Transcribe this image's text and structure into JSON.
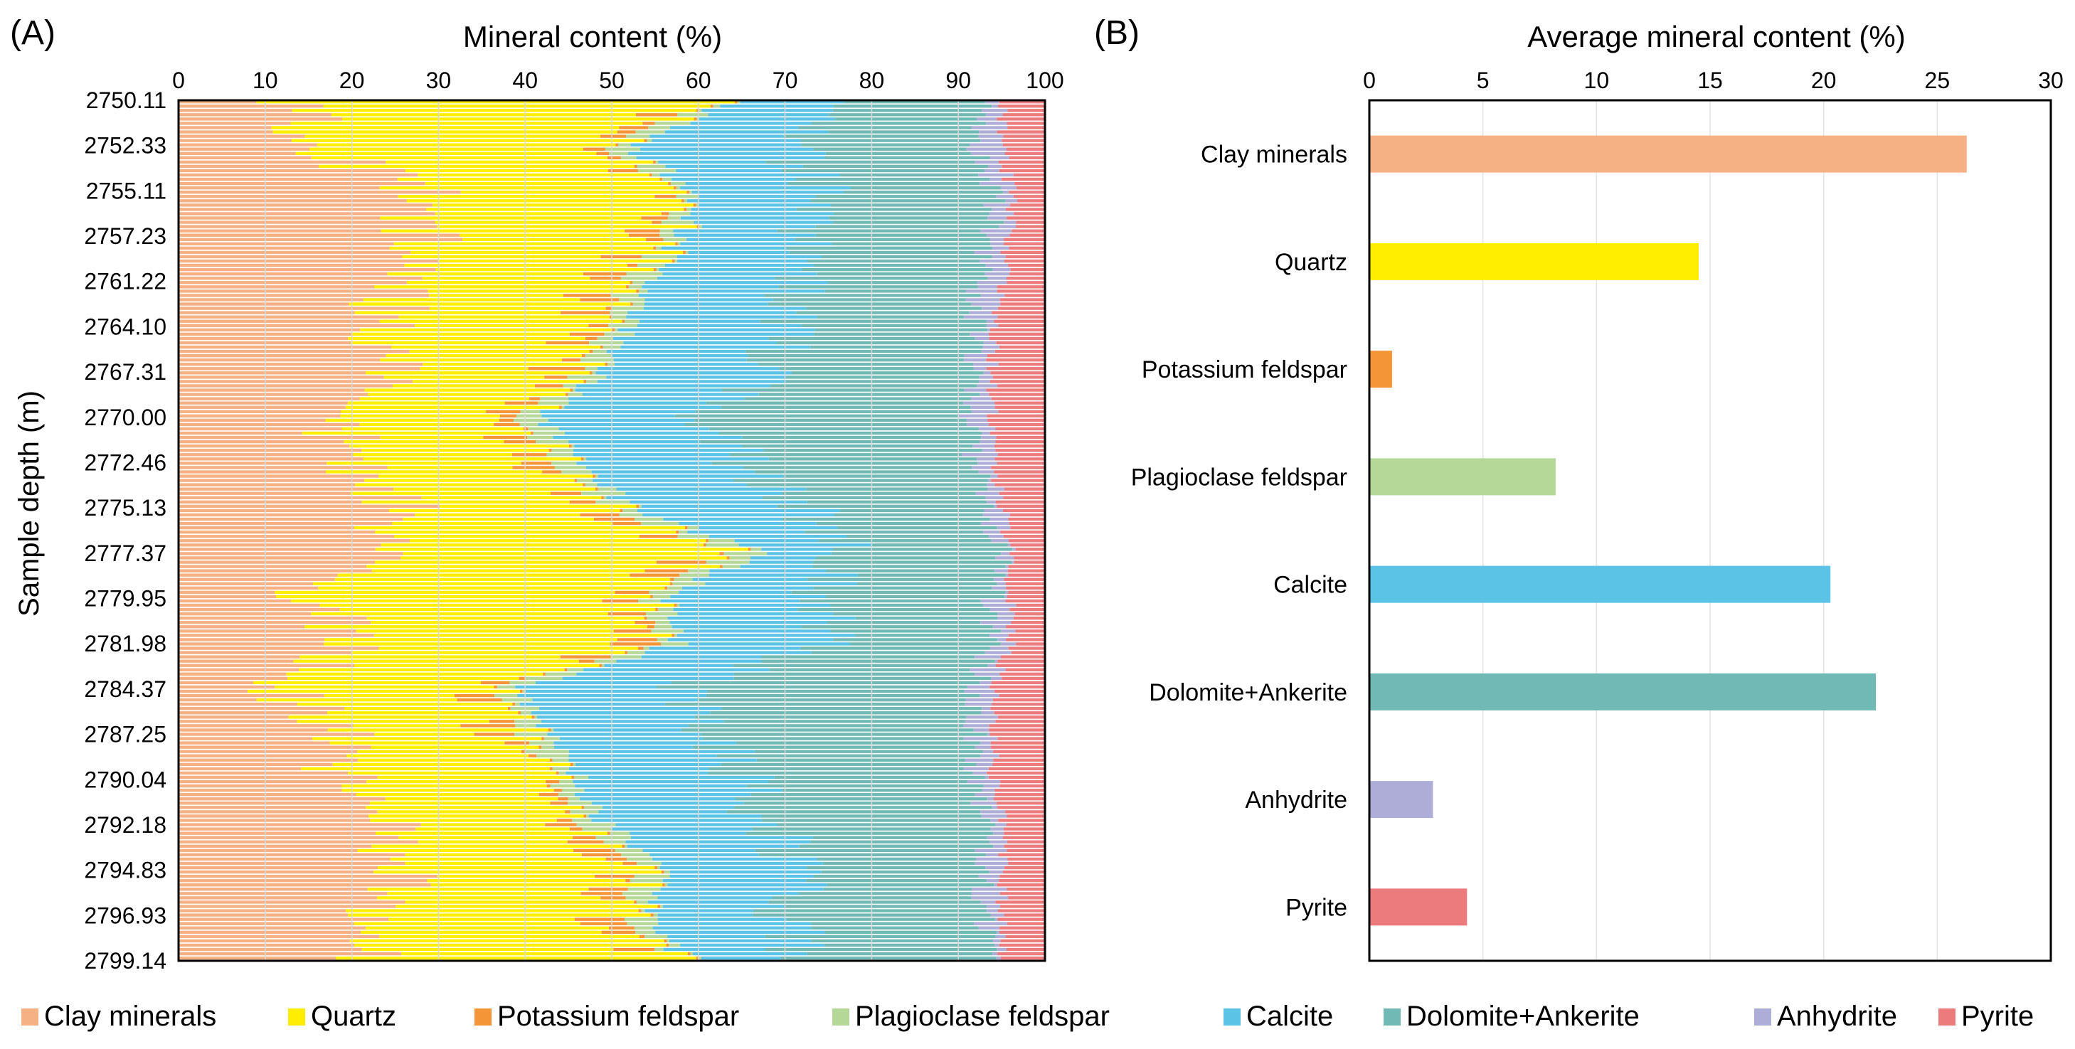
{
  "colors": {
    "clay": "#f5b183",
    "quartz": "#ffee00",
    "kfeld": "#f49537",
    "plag": "#b5d898",
    "calcite": "#5bc3e6",
    "dolomite": "#70b9b4",
    "anhydrite": "#adadd8",
    "pyrite": "#ec7b7d"
  },
  "chart_data": [
    {
      "type": "bar",
      "orientation": "horizontal-stacked",
      "panel_label": "(A)",
      "title": "Mineral content (%)",
      "xlabel": "Mineral content (%)",
      "ylabel": "Sample depth (m)",
      "xlim": [
        0,
        100
      ],
      "xticks": [
        "0",
        "10",
        "20",
        "30",
        "40",
        "50",
        "60",
        "70",
        "80",
        "90",
        "100"
      ],
      "depth_tick_labels": [
        "2750.11",
        "2752.33",
        "2755.11",
        "2757.23",
        "2761.22",
        "2764.10",
        "2767.31",
        "2770.00",
        "2772.46",
        "2775.13",
        "2777.37",
        "2779.95",
        "2781.98",
        "2784.37",
        "2787.25",
        "2790.04",
        "2792.18",
        "2794.83",
        "2796.93",
        "2799.14"
      ],
      "sample_count": 200,
      "typical_cumulative_boundaries_by_depth": {
        "depth": [
          "2750.11",
          "2752.33",
          "2755.11",
          "2757.23",
          "2761.22",
          "2764.10",
          "2767.31",
          "2770.00",
          "2772.46",
          "2775.13",
          "2777.37",
          "2779.95",
          "2781.98",
          "2784.37",
          "2787.25",
          "2790.04",
          "2792.18",
          "2794.83",
          "2796.93",
          "2799.14"
        ],
        "clay_end": [
          14,
          16,
          28,
          28,
          25,
          24,
          25,
          17,
          20,
          26,
          24,
          15,
          22,
          12,
          18,
          19,
          23,
          27,
          22,
          22
        ],
        "quartz_end": [
          60,
          48,
          56,
          55,
          50,
          48,
          45,
          38,
          42,
          48,
          62,
          52,
          55,
          35,
          38,
          42,
          45,
          52,
          50,
          55
        ],
        "kfeld_end": [
          61,
          49,
          57,
          56,
          51,
          49,
          46,
          39,
          43,
          49,
          63,
          53,
          56,
          36,
          39,
          43,
          46,
          53,
          51,
          56
        ],
        "plag_end": [
          63,
          52,
          60,
          58,
          54,
          52,
          49,
          42,
          46,
          52,
          67,
          56,
          58,
          39,
          42,
          46,
          49,
          56,
          54,
          58
        ],
        "calcite_end": [
          75,
          70,
          75,
          72,
          72,
          70,
          68,
          60,
          65,
          72,
          78,
          74,
          75,
          58,
          62,
          65,
          68,
          72,
          70,
          72
        ],
        "dolomite_end": [
          93,
          92,
          94,
          94,
          92,
          92,
          92,
          91,
          92,
          93,
          95,
          94,
          94,
          92,
          92,
          92,
          93,
          93,
          93,
          93
        ],
        "anhydrite_end": [
          95,
          95,
          96,
          96,
          95,
          94,
          94,
          94,
          94,
          95,
          96,
          96,
          96,
          94,
          94,
          94,
          95,
          95,
          95,
          95
        ]
      }
    },
    {
      "type": "bar",
      "orientation": "horizontal",
      "panel_label": "(B)",
      "title": "Average mineral content (%)",
      "xlabel": "Average mineral content (%)",
      "xlim": [
        0,
        30
      ],
      "xticks": [
        "0",
        "5",
        "10",
        "15",
        "20",
        "25",
        "30"
      ],
      "categories": [
        "Clay minerals",
        "Quartz",
        "Potassium feldspar",
        "Plagioclase feldspar",
        "Calcite",
        "Dolomite+Ankerite",
        "Anhydrite",
        "Pyrite"
      ],
      "values": [
        26.3,
        14.5,
        1.0,
        8.2,
        20.3,
        22.3,
        2.8,
        4.3
      ]
    }
  ],
  "legend": {
    "position": "bottom",
    "entries": [
      "Clay minerals",
      "Quartz",
      "Potassium feldspar",
      "Plagioclase feldspar",
      "Calcite",
      "Dolomite+Ankerite",
      "Anhydrite",
      "Pyrite"
    ]
  }
}
